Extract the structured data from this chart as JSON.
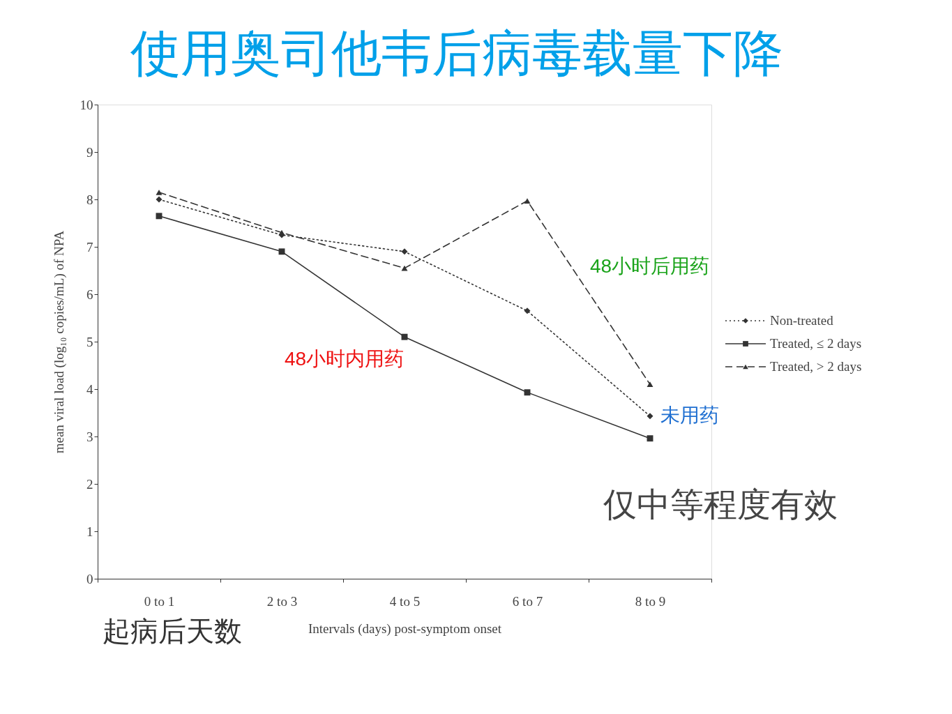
{
  "chart_data": {
    "type": "line",
    "title": "使用奥司他韦后病毒载量下降",
    "xlabel": "Intervals (days) post-symptom onset",
    "ylabel": "mean viral load (log₁₀ copies/mL) of NPA",
    "categories": [
      "0 to 1",
      "2 to 3",
      "4 to 5",
      "6 to 7",
      "8 to 9"
    ],
    "series": [
      {
        "name": "Non-treated",
        "color": "#333333",
        "marker": "diamond",
        "line_style": "dotted",
        "values": [
          8.0,
          7.25,
          6.9,
          5.65,
          3.43
        ]
      },
      {
        "name": "Treated, ≤ 2 days",
        "color": "#333333",
        "marker": "square",
        "line_style": "solid",
        "values": [
          7.65,
          6.9,
          5.1,
          3.93,
          2.96
        ]
      },
      {
        "name": "Treated, > 2 days",
        "color": "#333333",
        "marker": "triangle",
        "line_style": "dashed",
        "values": [
          8.15,
          7.3,
          6.55,
          7.97,
          4.1
        ]
      }
    ],
    "ylim": [
      0,
      10
    ],
    "yticks": [
      0,
      1,
      2,
      3,
      4,
      5,
      6,
      7,
      8,
      9,
      10
    ],
    "grid": false,
    "legend": "right",
    "annotations": [
      "48小时后用药",
      "48小时内用药",
      {
        "text": "未用药",
        "x": "8 to 9",
        "y": 3.43
      },
      "仅中等程度有效",
      "起病后天数"
    ]
  }
}
